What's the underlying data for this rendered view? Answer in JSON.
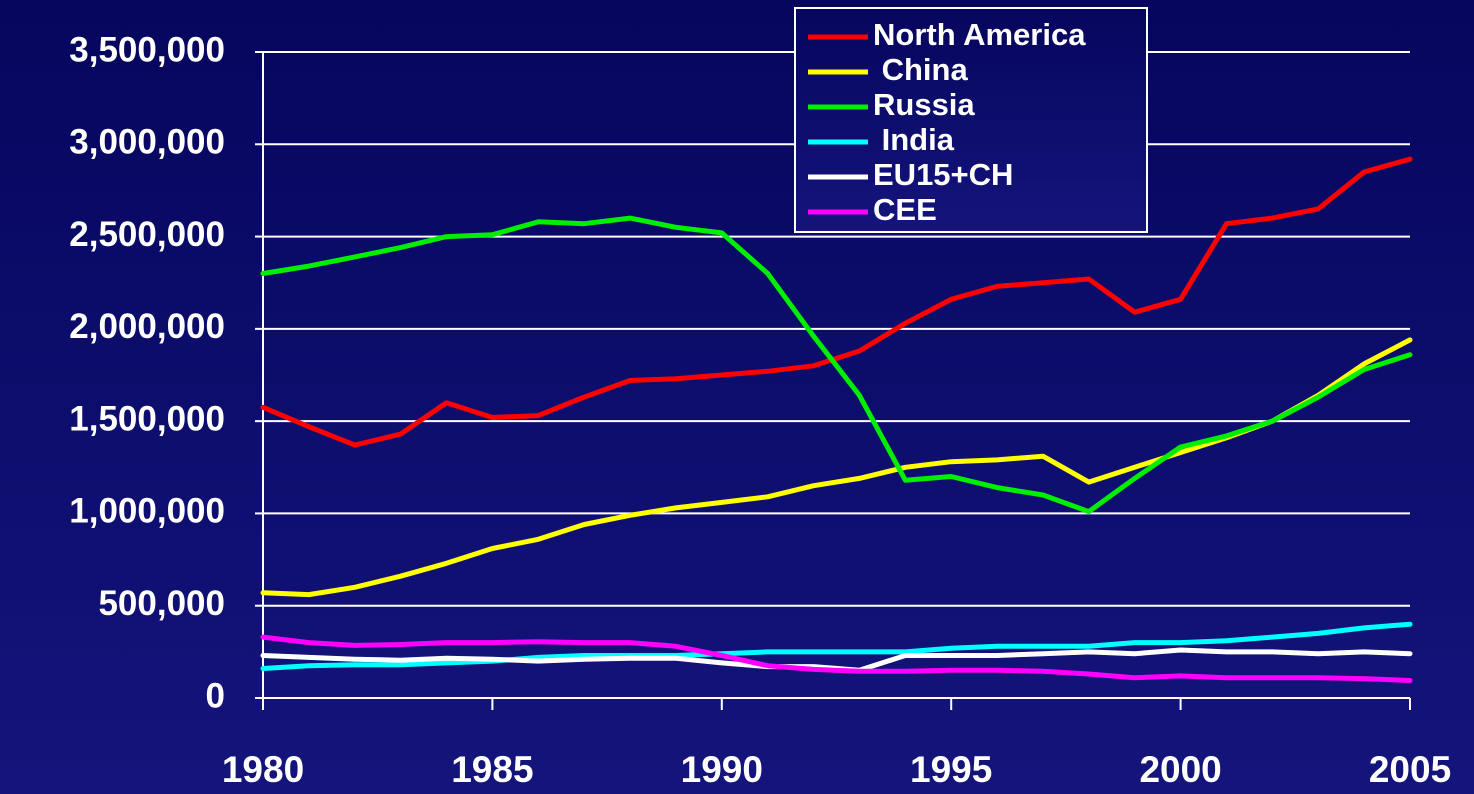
{
  "chart_data": {
    "type": "line",
    "x": [
      1980,
      1981,
      1982,
      1983,
      1984,
      1985,
      1986,
      1987,
      1988,
      1989,
      1990,
      1991,
      1992,
      1993,
      1994,
      1995,
      1996,
      1997,
      1998,
      1999,
      2000,
      2001,
      2002,
      2003,
      2004,
      2005
    ],
    "xlim": [
      1980,
      2005
    ],
    "xticks": [
      1980,
      1985,
      1990,
      1995,
      2000,
      2005
    ],
    "ylim": [
      0,
      3500000
    ],
    "yticks": [
      {
        "value": 0,
        "label": "0"
      },
      {
        "value": 500000,
        "label": "500,000"
      },
      {
        "value": 1000000,
        "label": "1,000,000"
      },
      {
        "value": 1500000,
        "label": "1,500,000"
      },
      {
        "value": 2000000,
        "label": "2,000,000"
      },
      {
        "value": 2500000,
        "label": "2,500,000"
      },
      {
        "value": 3000000,
        "label": "3,000,000"
      },
      {
        "value": 3500000,
        "label": "3,500,000"
      }
    ],
    "grid": true,
    "legend": "top-right",
    "series": [
      {
        "name": "North America",
        "color": "#ff0000",
        "values": [
          1575000,
          1470000,
          1370000,
          1430000,
          1600000,
          1520000,
          1530000,
          1630000,
          1720000,
          1730000,
          1750000,
          1770000,
          1800000,
          1880000,
          2030000,
          2160000,
          2230000,
          2250000,
          2270000,
          2090000,
          2160000,
          2570000,
          2600000,
          2650000,
          2850000,
          2920000
        ]
      },
      {
        "name": " China",
        "color": "#ffff00",
        "values": [
          570000,
          560000,
          600000,
          660000,
          730000,
          810000,
          860000,
          940000,
          990000,
          1030000,
          1060000,
          1090000,
          1150000,
          1190000,
          1250000,
          1280000,
          1290000,
          1310000,
          1170000,
          1250000,
          1330000,
          1410000,
          1500000,
          1640000,
          1810000,
          1940000
        ]
      },
      {
        "name": "Russia",
        "color": "#00ee00",
        "values": [
          2300000,
          2340000,
          2390000,
          2440000,
          2500000,
          2510000,
          2580000,
          2570000,
          2600000,
          2550000,
          2520000,
          2300000,
          1960000,
          1640000,
          1180000,
          1200000,
          1140000,
          1100000,
          1010000,
          1190000,
          1360000,
          1420000,
          1500000,
          1630000,
          1780000,
          1860000
        ]
      },
      {
        "name": " India",
        "color": "#00ffff",
        "values": [
          160000,
          175000,
          180000,
          180000,
          190000,
          200000,
          220000,
          230000,
          230000,
          230000,
          240000,
          250000,
          250000,
          250000,
          250000,
          270000,
          280000,
          280000,
          280000,
          300000,
          300000,
          310000,
          330000,
          350000,
          380000,
          400000
        ]
      },
      {
        "name": "EU15+CH",
        "color": "#ffffff",
        "values": [
          230000,
          220000,
          210000,
          205000,
          215000,
          210000,
          200000,
          210000,
          215000,
          215000,
          190000,
          170000,
          170000,
          150000,
          230000,
          230000,
          230000,
          240000,
          250000,
          240000,
          260000,
          250000,
          250000,
          240000,
          250000,
          240000
        ]
      },
      {
        "name": "CEE",
        "color": "#ff00ff",
        "values": [
          330000,
          300000,
          285000,
          290000,
          300000,
          300000,
          305000,
          300000,
          300000,
          280000,
          230000,
          175000,
          155000,
          145000,
          145000,
          150000,
          150000,
          145000,
          130000,
          110000,
          120000,
          110000,
          110000,
          110000,
          105000,
          95000
        ]
      }
    ]
  }
}
